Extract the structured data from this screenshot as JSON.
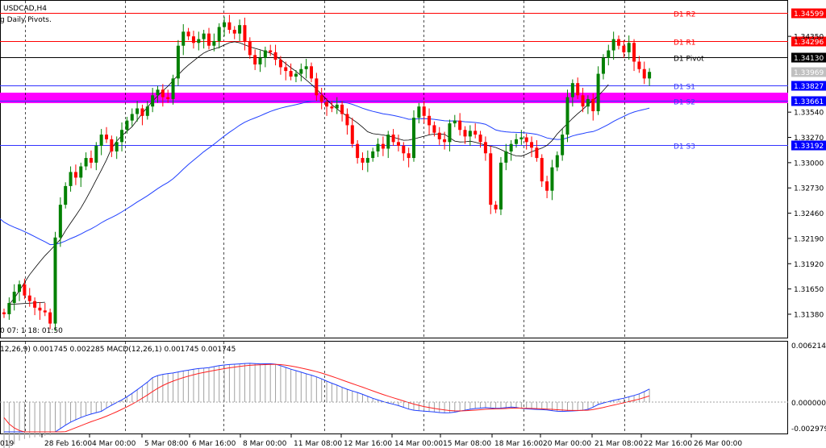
{
  "window": {
    "symbol_timeframe": "USDCAD,H4",
    "indicator_name": "g Daily Pivots.",
    "countdown": "0 07: 1 18: 01:50"
  },
  "macd": {
    "label": "12,26,9) 0.001745 0.002285 MACD(12,26,1) 0.001745 0.001745",
    "scale": [
      "0.006214",
      "0.000000",
      "-0.002979"
    ]
  },
  "pivots": [
    {
      "name": "D1 R2",
      "price": "1.34599",
      "value": 1.34599,
      "color": "#ff0000",
      "label_bg": "#ff0000"
    },
    {
      "name": "D1 R1",
      "price": "1.34296",
      "value": 1.34296,
      "color": "#ff0000",
      "label_bg": "#ff0000"
    },
    {
      "name": "D1 Pivot",
      "price": "1.34130",
      "value": 1.3413,
      "color": "#000000",
      "label_bg": "#000000"
    },
    {
      "name": "D1 S1",
      "price": "1.33827",
      "value": 1.33827,
      "color": "#3333ff",
      "label_bg": "#0000ff"
    },
    {
      "name": "D1 S2",
      "price": "1.33661",
      "value": 1.33661,
      "color": "#3333ff",
      "label_bg": "#0000ff"
    },
    {
      "name": "D1 S3",
      "price": "1.33192",
      "value": 1.33192,
      "color": "#3333ff",
      "label_bg": "#0000ff"
    }
  ],
  "current_price": {
    "price": "1.33969",
    "value": 1.33969
  },
  "price_axis": {
    "ticks": [
      "1.34350",
      "1.33540",
      "1.33270",
      "1.33000",
      "1.32730",
      "1.32460",
      "1.32190",
      "1.31920",
      "1.31650",
      "1.31380"
    ],
    "min": 1.3113,
    "max": 1.3473
  },
  "time_axis": {
    "labels": [
      "019",
      "28 Feb 16:00",
      "4 Mar 00:00",
      "5 Mar 08:00",
      "6 Mar 16:00",
      "8 Mar 00:00",
      "11 Mar 08:00",
      "12 Mar 16:00",
      "14 Mar 00:00",
      "15 Mar 08:00",
      "18 Mar 16:00",
      "20 Mar 00:00",
      "21 Mar 08:00",
      "22 Mar 16:00",
      "26 Mar 00:00"
    ]
  },
  "colors": {
    "bull": "#008000",
    "bear": "#ff0000",
    "ma_fast": "#000000",
    "ma_slow": "#1f3fff",
    "support_zone": "#ff00ff",
    "signal_line": "#ff2020",
    "macd_line": "#1f3fff",
    "histogram": "#a0a0a0"
  }
}
